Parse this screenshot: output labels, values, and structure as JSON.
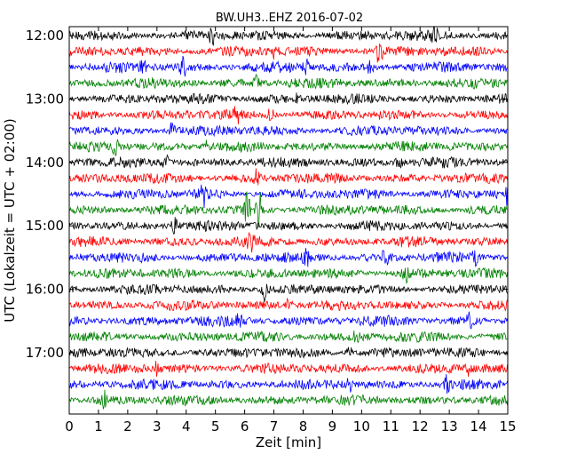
{
  "chart_data": {
    "type": "line",
    "title": "BW.UH3..EHZ 2016-07-02",
    "xlabel": "Zeit  [min]",
    "ylabel": "UTC (Lokalzeit = UTC + 02:00)",
    "xlim": [
      0,
      15
    ],
    "x_ticks": [
      0,
      1,
      2,
      3,
      4,
      5,
      6,
      7,
      8,
      9,
      10,
      11,
      12,
      13,
      14,
      15
    ],
    "x_tick_labels": [
      "0",
      "1",
      "2",
      "3",
      "4",
      "5",
      "6",
      "7",
      "8",
      "9",
      "10",
      "11",
      "12",
      "13",
      "14",
      "15"
    ],
    "y_tick_labels": [
      "12:00",
      "13:00",
      "14:00",
      "15:00",
      "16:00",
      "17:00"
    ],
    "row_interval_minutes": 15,
    "color_cycle": [
      "#000000",
      "#ff0000",
      "#0000ff",
      "#008000"
    ],
    "series": [
      {
        "start": "12:00",
        "color": "#000000",
        "events": [
          [
            4.9,
            1.4
          ],
          [
            12.5,
            1.2
          ]
        ]
      },
      {
        "start": "12:15",
        "color": "#ff0000",
        "events": [
          [
            10.6,
            2.2
          ],
          [
            7.0,
            1.2
          ]
        ]
      },
      {
        "start": "12:30",
        "color": "#0000ff",
        "events": [
          [
            2.5,
            1.6
          ],
          [
            3.9,
            1.4
          ],
          [
            8.1,
            1.5
          ],
          [
            10.3,
            1.2
          ]
        ]
      },
      {
        "start": "12:45",
        "color": "#008000",
        "events": [
          [
            6.4,
            1.2
          ]
        ]
      },
      {
        "start": "13:00",
        "color": "#000000",
        "events": [
          [
            7.8,
            1.1
          ]
        ]
      },
      {
        "start": "13:15",
        "color": "#ff0000",
        "events": [
          [
            5.7,
            1.6
          ],
          [
            6.9,
            1.5
          ]
        ]
      },
      {
        "start": "13:30",
        "color": "#0000ff",
        "events": [
          [
            3.5,
            1.2
          ]
        ]
      },
      {
        "start": "13:45",
        "color": "#008000",
        "events": [
          [
            1.6,
            1.6
          ],
          [
            4.7,
            1.3
          ]
        ]
      },
      {
        "start": "14:00",
        "color": "#000000",
        "events": [
          [
            3.3,
            1.3
          ],
          [
            11.3,
            1.3
          ]
        ]
      },
      {
        "start": "14:15",
        "color": "#ff0000",
        "events": [
          [
            6.4,
            1.6
          ]
        ]
      },
      {
        "start": "14:30",
        "color": "#0000ff",
        "events": [
          [
            4.6,
            1.8
          ],
          [
            15.0,
            1.5
          ]
        ]
      },
      {
        "start": "14:45",
        "color": "#008000",
        "events": [
          [
            6.1,
            3.0
          ],
          [
            6.5,
            3.0
          ]
        ]
      },
      {
        "start": "15:00",
        "color": "#000000",
        "events": [
          [
            3.6,
            1.2
          ]
        ]
      },
      {
        "start": "15:15",
        "color": "#ff0000",
        "events": [
          [
            6.2,
            1.3
          ]
        ]
      },
      {
        "start": "15:30",
        "color": "#0000ff",
        "events": [
          [
            8.1,
            1.3
          ],
          [
            10.8,
            1.3
          ],
          [
            13.9,
            1.2
          ]
        ]
      },
      {
        "start": "15:45",
        "color": "#008000",
        "events": [
          [
            11.5,
            1.2
          ]
        ]
      },
      {
        "start": "16:00",
        "color": "#000000",
        "events": [
          [
            6.7,
            2.4
          ]
        ]
      },
      {
        "start": "16:15",
        "color": "#ff0000",
        "events": [
          [
            7.5,
            1.2
          ]
        ]
      },
      {
        "start": "16:30",
        "color": "#0000ff",
        "events": [
          [
            5.8,
            1.2
          ],
          [
            13.7,
            1.2
          ]
        ]
      },
      {
        "start": "16:45",
        "color": "#008000",
        "events": [
          [
            9.8,
            1.2
          ]
        ]
      },
      {
        "start": "17:00",
        "color": "#000000",
        "events": [
          [
            9.6,
            1.2
          ]
        ]
      },
      {
        "start": "17:15",
        "color": "#ff0000",
        "events": [
          [
            3.0,
            1.2
          ],
          [
            13.6,
            1.2
          ]
        ]
      },
      {
        "start": "17:30",
        "color": "#0000ff",
        "events": [
          [
            9.6,
            1.4
          ],
          [
            12.9,
            1.2
          ]
        ]
      },
      {
        "start": "17:45",
        "color": "#008000",
        "events": [
          [
            1.2,
            1.3
          ]
        ]
      }
    ]
  }
}
